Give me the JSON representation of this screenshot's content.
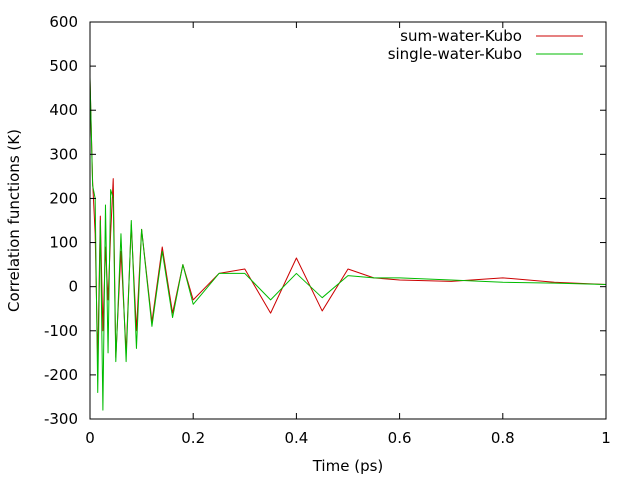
{
  "chart_data": {
    "type": "line",
    "xlabel": "Time (ps)",
    "ylabel": "Correlation functions (K)",
    "xlim": [
      0,
      1
    ],
    "ylim": [
      -300,
      600
    ],
    "x_ticks": [
      0,
      0.2,
      0.4,
      0.6,
      0.8,
      1
    ],
    "x_tick_labels": [
      "0",
      "0.2",
      "0.4",
      "0.6",
      "0.8",
      "1"
    ],
    "y_ticks": [
      -300,
      -200,
      -100,
      0,
      100,
      200,
      300,
      400,
      500,
      600
    ],
    "y_tick_labels": [
      "-300",
      "-200",
      "-100",
      "0",
      "100",
      "200",
      "300",
      "400",
      "500",
      "600"
    ],
    "grid": false,
    "legend_position": "top-right",
    "series": [
      {
        "name": "sum-water-Kubo",
        "color": "#cc0000",
        "x": [
          0,
          0.005,
          0.01,
          0.015,
          0.02,
          0.025,
          0.03,
          0.035,
          0.04,
          0.045,
          0.05,
          0.06,
          0.07,
          0.08,
          0.09,
          0.1,
          0.12,
          0.14,
          0.16,
          0.18,
          0.2,
          0.25,
          0.3,
          0.35,
          0.4,
          0.45,
          0.5,
          0.55,
          0.6,
          0.7,
          0.8,
          0.9,
          1.0
        ],
        "y": [
          470,
          240,
          120,
          -170,
          160,
          -100,
          90,
          -30,
          120,
          245,
          -160,
          80,
          -150,
          140,
          -100,
          130,
          -80,
          90,
          -60,
          50,
          -30,
          30,
          40,
          -60,
          65,
          -55,
          40,
          20,
          15,
          12,
          20,
          10,
          5
        ]
      },
      {
        "name": "single-water-Kubo",
        "color": "#00bb00",
        "x": [
          0,
          0.005,
          0.01,
          0.015,
          0.02,
          0.025,
          0.03,
          0.035,
          0.04,
          0.045,
          0.05,
          0.06,
          0.07,
          0.08,
          0.09,
          0.1,
          0.12,
          0.14,
          0.16,
          0.18,
          0.2,
          0.25,
          0.3,
          0.35,
          0.4,
          0.45,
          0.5,
          0.55,
          0.6,
          0.7,
          0.8,
          0.9,
          1.0
        ],
        "y": [
          475,
          230,
          200,
          -240,
          150,
          -280,
          185,
          -150,
          220,
          200,
          -170,
          120,
          -170,
          150,
          -140,
          130,
          -90,
          80,
          -70,
          50,
          -40,
          30,
          30,
          -30,
          30,
          -25,
          25,
          20,
          20,
          15,
          10,
          8,
          5
        ]
      }
    ]
  }
}
